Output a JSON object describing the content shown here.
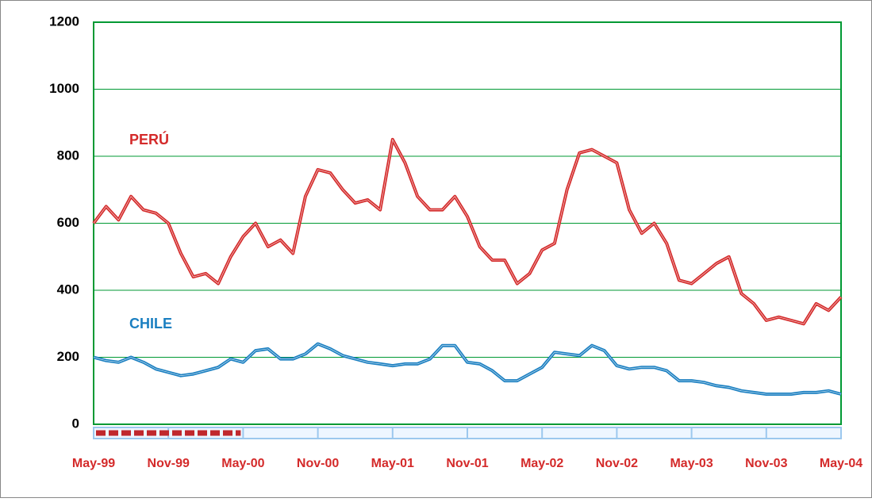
{
  "chart_data": {
    "type": "line",
    "categories": [
      "May-99",
      null,
      null,
      null,
      null,
      null,
      "Nov-99",
      null,
      null,
      null,
      null,
      null,
      "May-00",
      null,
      null,
      null,
      null,
      null,
      "Nov-00",
      null,
      null,
      null,
      null,
      null,
      "May-01",
      null,
      null,
      null,
      null,
      null,
      "Nov-01",
      null,
      null,
      null,
      null,
      null,
      "May-02",
      null,
      null,
      null,
      null,
      null,
      "Nov-02",
      null,
      null,
      null,
      null,
      null,
      "May-03",
      null,
      null,
      null,
      null,
      null,
      "Nov-03",
      null,
      null,
      null,
      null,
      null,
      "May-04"
    ],
    "series": [
      {
        "name": "PERÚ",
        "color": "#d42a2a",
        "values": [
          600,
          650,
          610,
          680,
          640,
          630,
          600,
          510,
          440,
          450,
          420,
          500,
          560,
          600,
          530,
          550,
          510,
          680,
          760,
          750,
          700,
          660,
          670,
          640,
          850,
          780,
          680,
          640,
          640,
          680,
          620,
          530,
          490,
          490,
          420,
          450,
          520,
          540,
          700,
          810,
          820,
          800,
          780,
          640,
          570,
          600,
          540,
          430,
          420,
          450,
          480,
          500,
          390,
          360,
          310,
          320,
          310,
          300,
          360,
          340,
          380
        ]
      },
      {
        "name": "CHILE",
        "color": "#1a7fc1",
        "values": [
          200,
          190,
          185,
          200,
          185,
          165,
          155,
          145,
          150,
          160,
          170,
          195,
          185,
          220,
          225,
          195,
          195,
          210,
          240,
          225,
          205,
          195,
          185,
          180,
          175,
          180,
          180,
          195,
          235,
          235,
          185,
          180,
          160,
          130,
          130,
          150,
          170,
          215,
          210,
          205,
          235,
          220,
          175,
          165,
          170,
          170,
          160,
          130,
          130,
          125,
          115,
          110,
          100,
          95,
          90,
          90,
          90,
          95,
          95,
          100,
          90
        ]
      }
    ],
    "ylim": [
      0,
      1200
    ],
    "yticks": [
      0,
      200,
      400,
      600,
      800,
      1000,
      1200
    ],
    "grid": true
  }
}
